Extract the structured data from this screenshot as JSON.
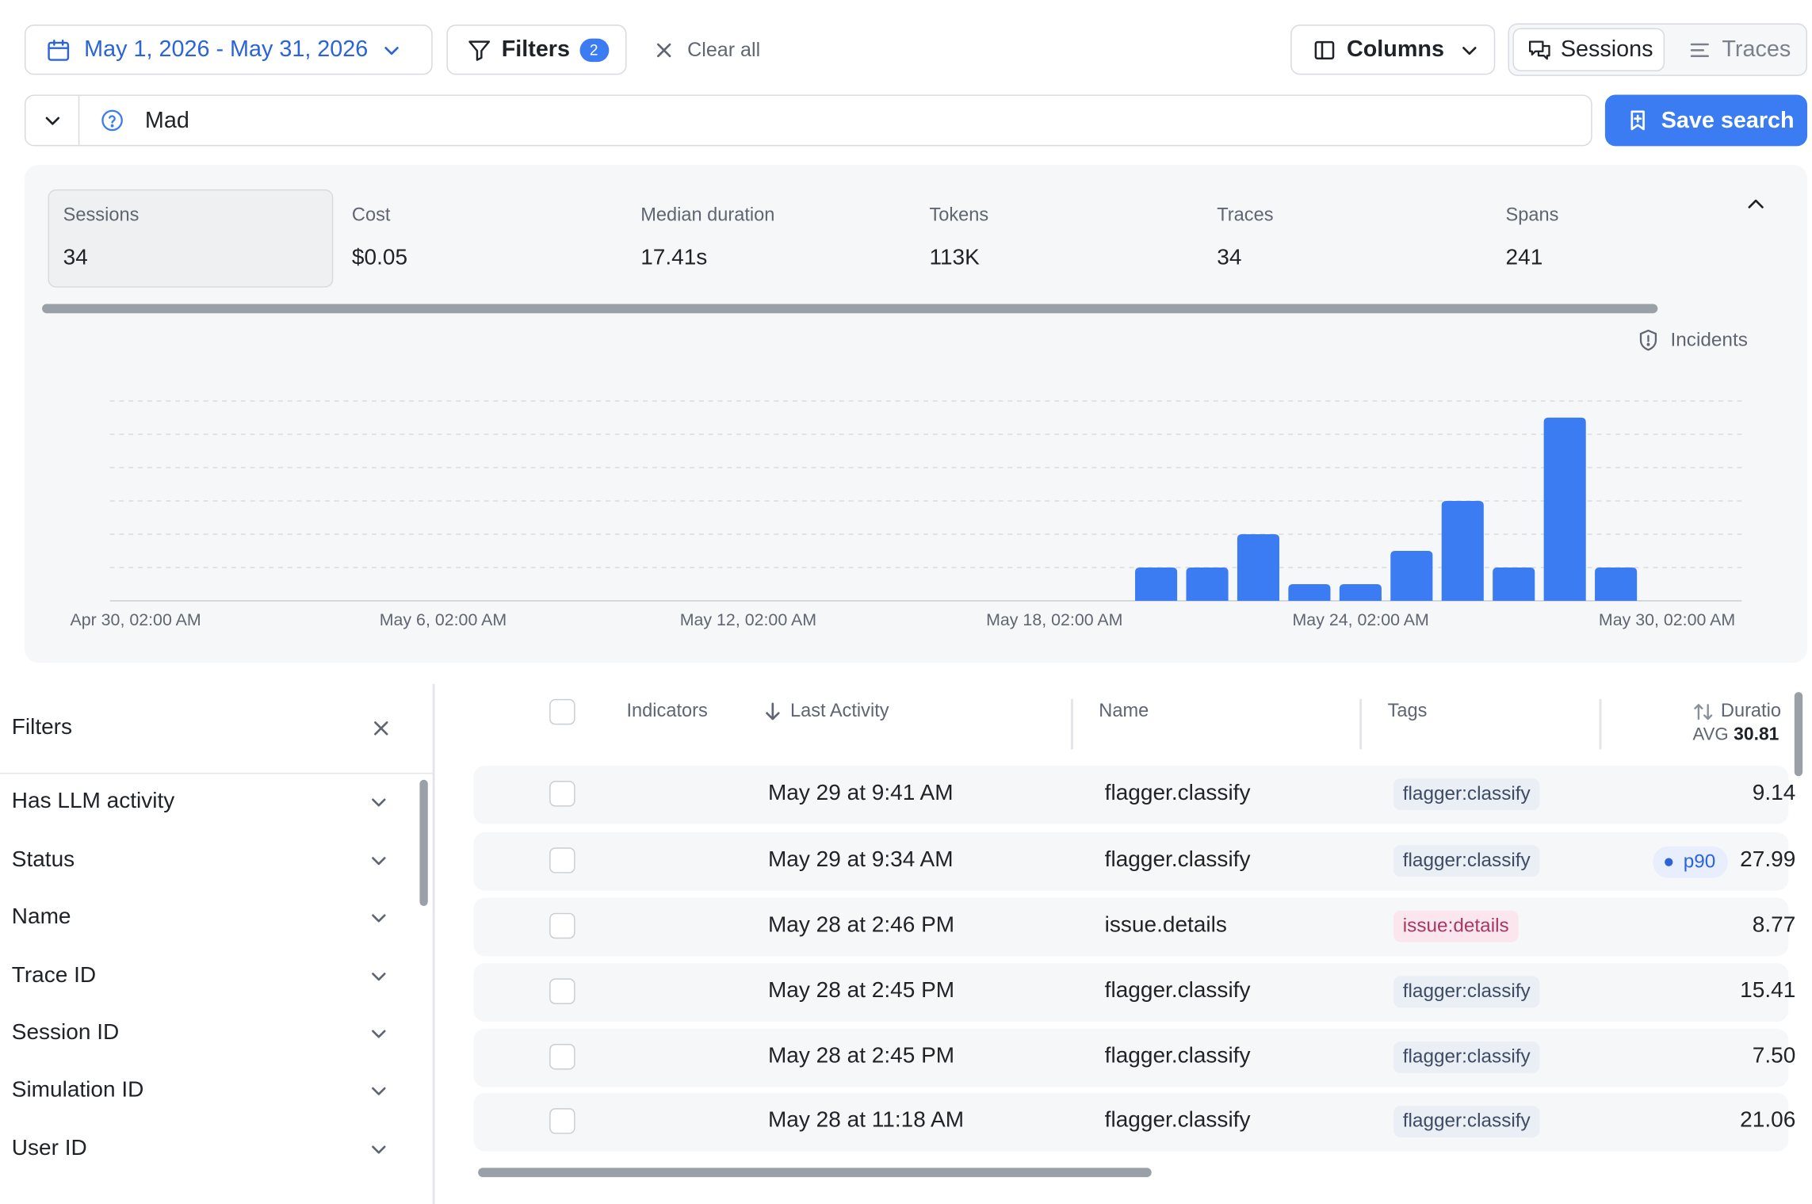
{
  "toolbar": {
    "date_range": "May 1, 2026 - May 31, 2026",
    "filters_label": "Filters",
    "filters_count": "2",
    "clear_all": "Clear all",
    "columns_label": "Columns",
    "view_sessions": "Sessions",
    "view_traces": "Traces"
  },
  "search": {
    "value": "Mad",
    "save_label": "Save search"
  },
  "stats": [
    {
      "label": "Sessions",
      "value": "34"
    },
    {
      "label": "Cost",
      "value": "$0.05"
    },
    {
      "label": "Median duration",
      "value": "17.41s"
    },
    {
      "label": "Tokens",
      "value": "113K"
    },
    {
      "label": "Traces",
      "value": "34"
    },
    {
      "label": "Spans",
      "value": "241"
    }
  ],
  "incidents_label": "Incidents",
  "colors": {
    "accent": "#3b7cf2",
    "bar": "#3b7cf2",
    "tag_blue_bg": "#eaeef5",
    "tag_pink_bg": "#fbe6ee",
    "tag_pink_text": "#a23a63"
  },
  "chart_data": {
    "type": "bar",
    "title": "",
    "xlabel": "",
    "ylabel": "",
    "x_tick_labels": [
      "Apr 30, 02:00 AM",
      "May 6, 02:00 AM",
      "May 12, 02:00 AM",
      "May 18, 02:00 AM",
      "May 24, 02:00 AM",
      "May 30, 02:00 AM"
    ],
    "categories": [
      "May 1",
      "May 2",
      "May 3",
      "May 4",
      "May 5",
      "May 6",
      "May 7",
      "May 8",
      "May 9",
      "May 10",
      "May 11",
      "May 12",
      "May 13",
      "May 14",
      "May 15",
      "May 16",
      "May 17",
      "May 18",
      "May 19",
      "May 20",
      "May 21",
      "May 22",
      "May 23",
      "May 24",
      "May 25",
      "May 26",
      "May 27",
      "May 28",
      "May 29",
      "May 30",
      "May 31"
    ],
    "values": [
      0,
      0,
      0,
      0,
      0,
      0,
      0,
      0,
      0,
      0,
      0,
      0,
      0,
      0,
      0,
      0,
      0,
      0,
      0,
      0,
      1,
      1,
      2,
      0.5,
      0.5,
      1.5,
      3,
      1,
      5.5,
      1,
      0
    ],
    "ylim": [
      0,
      6
    ],
    "grid": true
  },
  "filters_panel": {
    "title": "Filters",
    "items": [
      "Has LLM activity",
      "Status",
      "Name",
      "Trace ID",
      "Session ID",
      "Simulation ID",
      "User ID"
    ]
  },
  "table": {
    "headers": {
      "indicators": "Indicators",
      "last_activity": "Last Activity",
      "name": "Name",
      "tags": "Tags",
      "duration": "Duratio",
      "avg_label": "AVG",
      "avg_value": "30.81"
    },
    "rows": [
      {
        "last_activity": "May 29 at 9:41 AM",
        "name": "flagger.classify",
        "tag": "flagger:classify",
        "tag_kind": "blue",
        "badge": "",
        "duration": "9.14"
      },
      {
        "last_activity": "May 29 at 9:34 AM",
        "name": "flagger.classify",
        "tag": "flagger:classify",
        "tag_kind": "blue",
        "badge": "p90",
        "duration": "27.99"
      },
      {
        "last_activity": "May 28 at 2:46 PM",
        "name": "issue.details",
        "tag": "issue:details",
        "tag_kind": "pink",
        "badge": "",
        "duration": "8.77"
      },
      {
        "last_activity": "May 28 at 2:45 PM",
        "name": "flagger.classify",
        "tag": "flagger:classify",
        "tag_kind": "blue",
        "badge": "",
        "duration": "15.41"
      },
      {
        "last_activity": "May 28 at 2:45 PM",
        "name": "flagger.classify",
        "tag": "flagger:classify",
        "tag_kind": "blue",
        "badge": "",
        "duration": "7.50"
      },
      {
        "last_activity": "May 28 at 11:18 AM",
        "name": "flagger.classify",
        "tag": "flagger:classify",
        "tag_kind": "blue",
        "badge": "",
        "duration": "21.06"
      }
    ]
  }
}
